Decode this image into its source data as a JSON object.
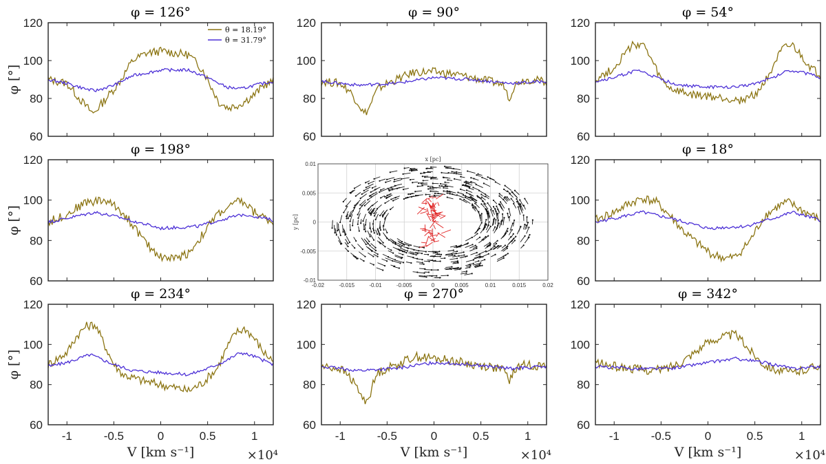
{
  "colors": {
    "series1": "#8b7412",
    "series2": "#4b2fd6",
    "axis": "#222222",
    "vec_black": "#111111",
    "vec_red": "#e02020",
    "grid": "#d0d0d0"
  },
  "legend": {
    "entries": [
      "θ = 18.19°",
      "θ = 31.79°"
    ]
  },
  "axes": {
    "ylabel": "φ [°]",
    "xlabel": "V [km s⁻¹]",
    "x_multiplier": "×10⁴",
    "xlim": [
      -1.2,
      1.2
    ],
    "ylim": [
      60,
      120
    ],
    "x_ticks": [
      "-1",
      "-0.5",
      "0",
      "0.5",
      "1"
    ],
    "y_ticks": [
      "60",
      "80",
      "100",
      "120"
    ]
  },
  "chart_data": [
    {
      "type": "line",
      "title": "φ = 126°",
      "series": [
        {
          "name": "θ = 18.19°",
          "x": [
            -1.2,
            -1.0,
            -0.9,
            -0.8,
            -0.72,
            -0.6,
            -0.45,
            -0.3,
            -0.15,
            0,
            0.15,
            0.3,
            0.45,
            0.55,
            0.62,
            0.72,
            0.85,
            1.0,
            1.1,
            1.2
          ],
          "y": [
            90,
            88,
            82,
            76,
            72,
            79,
            88,
            100,
            104,
            105,
            104,
            103,
            95,
            85,
            78,
            75,
            77,
            82,
            87,
            89
          ]
        },
        {
          "name": "θ = 31.79°",
          "x": [
            -1.2,
            -1.0,
            -0.8,
            -0.7,
            -0.5,
            -0.3,
            0,
            0.3,
            0.5,
            0.7,
            0.85,
            1.0,
            1.2
          ],
          "y": [
            90,
            88,
            85,
            84,
            87,
            92,
            95,
            95,
            91,
            86,
            85,
            87,
            89
          ]
        }
      ]
    },
    {
      "type": "line",
      "title": "φ = 90°",
      "series": [
        {
          "name": "θ = 18.19°",
          "x": [
            -1.2,
            -1.0,
            -0.9,
            -0.8,
            -0.75,
            -0.7,
            -0.65,
            -0.6,
            -0.5,
            -0.3,
            -0.2,
            0,
            0.2,
            0.4,
            0.6,
            0.75,
            0.8,
            0.85,
            0.9,
            1.0,
            1.2
          ],
          "y": [
            89,
            88,
            84,
            77,
            72,
            74,
            80,
            85,
            88,
            92,
            94,
            94,
            93,
            91,
            89,
            87,
            80,
            86,
            89,
            90,
            89
          ]
        },
        {
          "name": "θ = 31.79°",
          "x": [
            -1.2,
            -0.8,
            -0.4,
            0,
            0.4,
            0.8,
            1.2
          ],
          "y": [
            89,
            87,
            88,
            91,
            90,
            88,
            89
          ]
        }
      ]
    },
    {
      "type": "line",
      "title": "φ = 54°",
      "series": [
        {
          "name": "θ = 18.19°",
          "x": [
            -1.2,
            -1.0,
            -0.9,
            -0.8,
            -0.7,
            -0.6,
            -0.5,
            -0.4,
            -0.2,
            0,
            0.2,
            0.35,
            0.5,
            0.6,
            0.7,
            0.8,
            0.9,
            1.0,
            1.1,
            1.2
          ],
          "y": [
            90,
            96,
            103,
            108,
            109,
            100,
            90,
            85,
            82,
            81,
            80,
            79,
            82,
            88,
            98,
            106,
            108,
            102,
            96,
            92
          ]
        },
        {
          "name": "θ = 31.79°",
          "x": [
            -1.2,
            -1.0,
            -0.75,
            -0.5,
            -0.3,
            0,
            0.3,
            0.5,
            0.7,
            0.85,
            1.0,
            1.2
          ],
          "y": [
            89,
            91,
            95,
            90,
            87,
            86,
            86,
            88,
            91,
            95,
            94,
            91
          ]
        }
      ]
    },
    {
      "type": "line",
      "title": "φ = 198°",
      "series": [
        {
          "name": "θ = 18.19°",
          "x": [
            -1.2,
            -1.0,
            -0.8,
            -0.6,
            -0.45,
            -0.3,
            -0.15,
            0,
            0.15,
            0.3,
            0.45,
            0.6,
            0.75,
            0.85,
            1.0,
            1.2
          ],
          "y": [
            89,
            93,
            99,
            100,
            96,
            88,
            78,
            72,
            71,
            74,
            83,
            93,
            97,
            100,
            94,
            89
          ]
        },
        {
          "name": "θ = 31.79°",
          "x": [
            -1.2,
            -1.0,
            -0.7,
            -0.4,
            0,
            0.4,
            0.7,
            0.9,
            1.2
          ],
          "y": [
            89,
            91,
            94,
            91,
            86,
            87,
            91,
            93,
            90
          ]
        }
      ]
    },
    {
      "type": "line",
      "title": "φ = 18°",
      "series": [
        {
          "name": "θ = 18.19°",
          "x": [
            -1.2,
            -1.0,
            -0.85,
            -0.7,
            -0.55,
            -0.4,
            -0.25,
            -0.1,
            0.05,
            0.2,
            0.3,
            0.45,
            0.6,
            0.75,
            0.85,
            1.0,
            1.2
          ],
          "y": [
            90,
            94,
            98,
            101,
            99,
            92,
            84,
            78,
            73,
            71,
            72,
            80,
            92,
            97,
            99,
            95,
            90
          ]
        },
        {
          "name": "θ = 31.79°",
          "x": [
            -1.2,
            -1.0,
            -0.7,
            -0.4,
            0,
            0.4,
            0.7,
            0.9,
            1.2
          ],
          "y": [
            89,
            91,
            94,
            91,
            86,
            87,
            91,
            94,
            90
          ]
        }
      ]
    },
    {
      "type": "line",
      "title": "φ = 234°",
      "series": [
        {
          "name": "θ = 18.19°",
          "x": [
            -1.2,
            -1.0,
            -0.9,
            -0.8,
            -0.7,
            -0.6,
            -0.5,
            -0.4,
            -0.2,
            0,
            0.2,
            0.3,
            0.45,
            0.6,
            0.7,
            0.8,
            0.9,
            1.0,
            1.1,
            1.2
          ],
          "y": [
            90,
            96,
            104,
            109,
            110,
            100,
            90,
            85,
            82,
            80,
            78,
            77,
            81,
            88,
            98,
            106,
            108,
            103,
            96,
            92
          ]
        },
        {
          "name": "θ = 31.79°",
          "x": [
            -1.2,
            -1.0,
            -0.75,
            -0.5,
            -0.3,
            0,
            0.3,
            0.5,
            0.7,
            0.85,
            1.0,
            1.2
          ],
          "y": [
            89,
            91,
            95,
            90,
            87,
            86,
            85,
            88,
            92,
            96,
            94,
            90
          ]
        }
      ]
    },
    {
      "type": "line",
      "title": "φ = 270°",
      "series": [
        {
          "name": "θ = 18.19°",
          "x": [
            -1.2,
            -1.0,
            -0.9,
            -0.8,
            -0.75,
            -0.7,
            -0.65,
            -0.6,
            -0.5,
            -0.3,
            -0.2,
            0,
            0.2,
            0.4,
            0.6,
            0.75,
            0.8,
            0.85,
            0.9,
            1.0,
            1.2
          ],
          "y": [
            89,
            88,
            84,
            77,
            72,
            73,
            80,
            86,
            88,
            92,
            94,
            93,
            92,
            90,
            89,
            87,
            82,
            86,
            89,
            90,
            89
          ]
        },
        {
          "name": "θ = 31.79°",
          "x": [
            -1.2,
            -0.8,
            -0.4,
            0,
            0.4,
            0.8,
            1.2
          ],
          "y": [
            89,
            87,
            88,
            91,
            90,
            88,
            89
          ]
        }
      ]
    },
    {
      "type": "line",
      "title": "φ = 342°",
      "series": [
        {
          "name": "θ = 18.19°",
          "x": [
            -1.2,
            -1.0,
            -0.8,
            -0.6,
            -0.45,
            -0.3,
            -0.15,
            0,
            0.15,
            0.3,
            0.45,
            0.6,
            0.75,
            0.9,
            1.0,
            1.2
          ],
          "y": [
            91,
            89,
            88,
            87,
            88,
            91,
            96,
            101,
            104,
            105,
            97,
            90,
            87,
            86,
            87,
            90
          ]
        },
        {
          "name": "θ = 31.79°",
          "x": [
            -1.2,
            -0.8,
            -0.4,
            0,
            0.3,
            0.6,
            0.9,
            1.2
          ],
          "y": [
            89,
            88,
            88,
            91,
            93,
            91,
            88,
            89
          ]
        }
      ]
    },
    {
      "type": "quiver",
      "title": "",
      "xlabel": "x [pc]",
      "ylabel": "y [pc]",
      "xlim": [
        -0.02,
        0.02
      ],
      "ylim": [
        -0.01,
        0.01
      ],
      "x_ticks": [
        "-0.02",
        "-0.015",
        "-0.01",
        "-0.005",
        "0",
        "0.005",
        "0.01",
        "0.015",
        "0.02"
      ],
      "y_ticks": [
        "-0.01",
        "-0.005",
        "0",
        "0.005",
        "0.01"
      ],
      "grid": true,
      "ring_inner": 0.008,
      "ring_outer": 0.0175,
      "core_radius": 0.004
    }
  ]
}
